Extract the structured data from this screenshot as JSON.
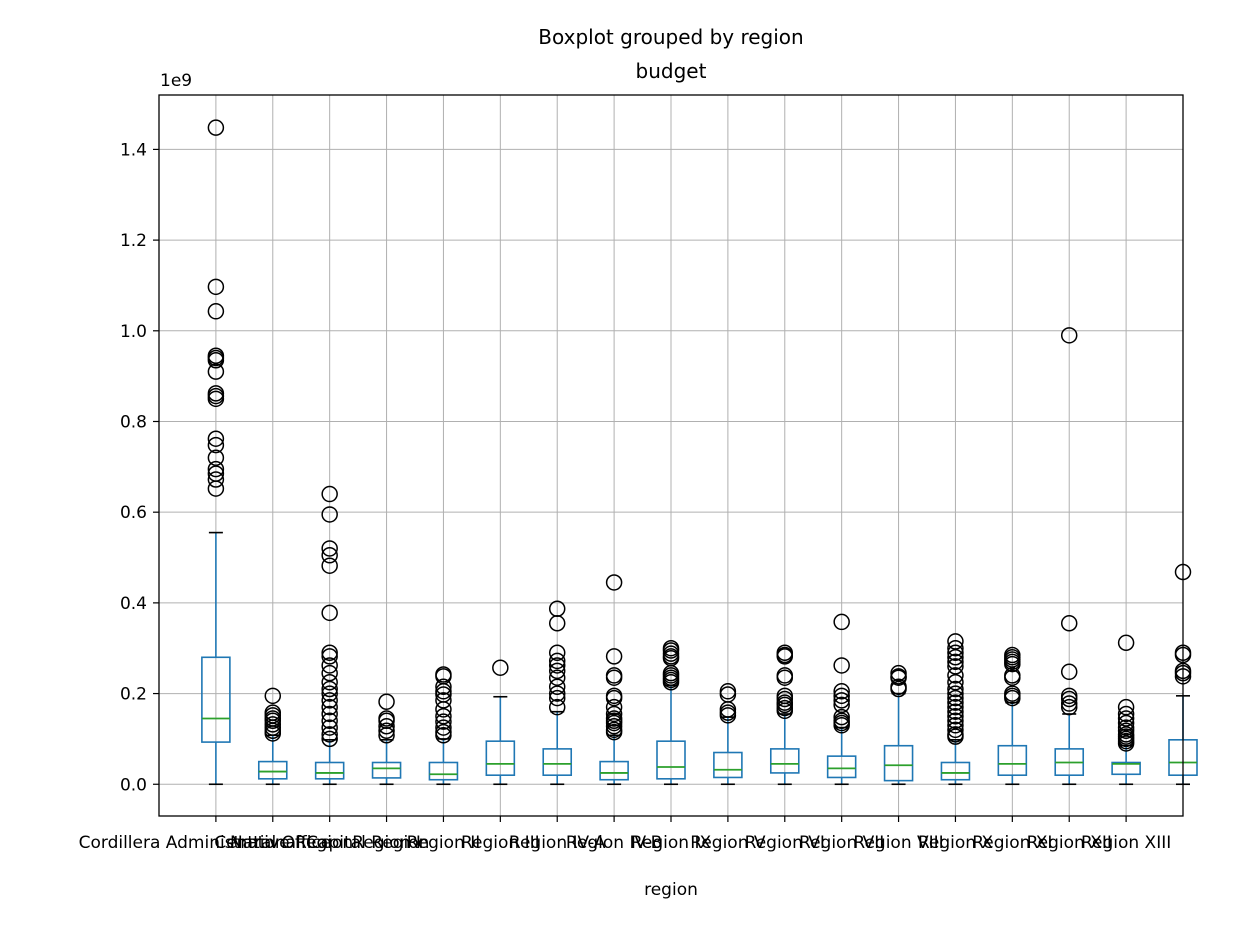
{
  "chart_data": {
    "type": "boxplot",
    "title": "Boxplot grouped by region",
    "subtitle": "budget",
    "xlabel": "region",
    "ylabel": "",
    "offset_label": "1e9",
    "ylim": [
      -0.07,
      1.52
    ],
    "yticks": [
      0.0,
      0.2,
      0.4,
      0.6,
      0.8,
      1.0,
      1.2,
      1.4
    ],
    "ytick_labels": [
      "0.0",
      "0.2",
      "0.4",
      "0.6",
      "0.8",
      "1.0",
      "1.2",
      "1.4"
    ],
    "grid": true,
    "colors": {
      "box": "#1f77b4",
      "median": "#2ca02c",
      "cap": "#000000",
      "flier": "#000000"
    },
    "categories": [
      "Cordillera Administrative Region",
      "Central Office",
      "National Capital Region",
      "Region I",
      "Region II",
      "Region III",
      "Region IV-A",
      "Region IV-B",
      "Region IX",
      "Region V",
      "Region VI",
      "Region VII",
      "Region VIII",
      "Region X",
      "Region XI",
      "Region XII",
      "Region XIII"
    ],
    "boxes": [
      {
        "q1": 0.093,
        "median": 0.145,
        "q3": 0.28,
        "whislo": 0.0,
        "whishi": 0.555,
        "fliers": [
          1.448,
          1.097,
          1.043,
          0.945,
          0.94,
          0.935,
          0.91,
          0.862,
          0.856,
          0.85,
          0.762,
          0.748,
          0.72,
          0.695,
          0.685,
          0.672,
          0.652
        ]
      },
      {
        "q1": 0.012,
        "median": 0.028,
        "q3": 0.05,
        "whislo": 0.0,
        "whishi": 0.108,
        "fliers": [
          0.195,
          0.158,
          0.152,
          0.145,
          0.14,
          0.132,
          0.125,
          0.118,
          0.112
        ]
      },
      {
        "q1": 0.012,
        "median": 0.025,
        "q3": 0.048,
        "whislo": 0.0,
        "whishi": 0.098,
        "fliers": [
          0.64,
          0.595,
          0.52,
          0.505,
          0.482,
          0.378,
          0.29,
          0.282,
          0.262,
          0.245,
          0.225,
          0.21,
          0.2,
          0.185,
          0.17,
          0.155,
          0.14,
          0.125,
          0.11,
          0.1
        ]
      },
      {
        "q1": 0.014,
        "median": 0.035,
        "q3": 0.048,
        "whislo": 0.0,
        "whishi": 0.098,
        "fliers": [
          0.182,
          0.145,
          0.14,
          0.128,
          0.118,
          0.108
        ]
      },
      {
        "q1": 0.01,
        "median": 0.022,
        "q3": 0.048,
        "whislo": 0.0,
        "whishi": 0.1,
        "fliers": [
          0.242,
          0.238,
          0.215,
          0.205,
          0.198,
          0.185,
          0.165,
          0.15,
          0.138,
          0.125,
          0.115,
          0.108
        ]
      },
      {
        "q1": 0.02,
        "median": 0.045,
        "q3": 0.095,
        "whislo": 0.0,
        "whishi": 0.193,
        "fliers": [
          0.257
        ]
      },
      {
        "q1": 0.02,
        "median": 0.045,
        "q3": 0.078,
        "whislo": 0.0,
        "whishi": 0.16,
        "fliers": [
          0.387,
          0.355,
          0.29,
          0.272,
          0.262,
          0.25,
          0.235,
          0.215,
          0.2,
          0.19,
          0.17
        ]
      },
      {
        "q1": 0.01,
        "median": 0.025,
        "q3": 0.05,
        "whislo": 0.0,
        "whishi": 0.108,
        "fliers": [
          0.445,
          0.282,
          0.24,
          0.235,
          0.195,
          0.19,
          0.17,
          0.155,
          0.145,
          0.14,
          0.135,
          0.128,
          0.12,
          0.115
        ]
      },
      {
        "q1": 0.012,
        "median": 0.038,
        "q3": 0.095,
        "whislo": 0.0,
        "whishi": 0.218,
        "fliers": [
          0.3,
          0.295,
          0.288,
          0.282,
          0.278,
          0.245,
          0.24,
          0.235,
          0.23,
          0.225
        ]
      },
      {
        "q1": 0.015,
        "median": 0.032,
        "q3": 0.07,
        "whislo": 0.0,
        "whishi": 0.148,
        "fliers": [
          0.205,
          0.198,
          0.165,
          0.158,
          0.152
        ]
      },
      {
        "q1": 0.025,
        "median": 0.045,
        "q3": 0.078,
        "whislo": 0.0,
        "whishi": 0.155,
        "fliers": [
          0.29,
          0.285,
          0.282,
          0.24,
          0.235,
          0.195,
          0.188,
          0.18,
          0.175,
          0.168,
          0.162
        ]
      },
      {
        "q1": 0.015,
        "median": 0.035,
        "q3": 0.062,
        "whislo": 0.0,
        "whishi": 0.125,
        "fliers": [
          0.358,
          0.262,
          0.205,
          0.195,
          0.185,
          0.175,
          0.148,
          0.14,
          0.135,
          0.13
        ]
      },
      {
        "q1": 0.008,
        "median": 0.042,
        "q3": 0.085,
        "whislo": 0.0,
        "whishi": 0.2,
        "fliers": [
          0.245,
          0.238,
          0.235,
          0.215,
          0.21
        ]
      },
      {
        "q1": 0.01,
        "median": 0.025,
        "q3": 0.048,
        "whislo": 0.0,
        "whishi": 0.098,
        "fliers": [
          0.315,
          0.3,
          0.29,
          0.28,
          0.27,
          0.26,
          0.24,
          0.225,
          0.21,
          0.2,
          0.19,
          0.18,
          0.17,
          0.16,
          0.15,
          0.14,
          0.13,
          0.12,
          0.11,
          0.105
        ]
      },
      {
        "q1": 0.02,
        "median": 0.045,
        "q3": 0.085,
        "whislo": 0.0,
        "whishi": 0.18,
        "fliers": [
          0.285,
          0.28,
          0.275,
          0.27,
          0.265,
          0.24,
          0.235,
          0.2,
          0.195,
          0.19
        ]
      },
      {
        "q1": 0.02,
        "median": 0.048,
        "q3": 0.078,
        "whislo": 0.0,
        "whishi": 0.155,
        "fliers": [
          0.99,
          0.355,
          0.248,
          0.195,
          0.188,
          0.178,
          0.17
        ]
      },
      {
        "q1": 0.022,
        "median": 0.045,
        "q3": 0.048,
        "whislo": 0.0,
        "whishi": 0.085,
        "fliers": [
          0.312,
          0.17,
          0.155,
          0.145,
          0.135,
          0.125,
          0.118,
          0.11,
          0.105,
          0.1,
          0.095,
          0.09
        ]
      },
      {
        "q1": 0.02,
        "median": 0.048,
        "q3": 0.098,
        "whislo": 0.0,
        "whishi": 0.195,
        "fliers": [
          0.468,
          0.29,
          0.285,
          0.25,
          0.245,
          0.238
        ]
      }
    ]
  }
}
